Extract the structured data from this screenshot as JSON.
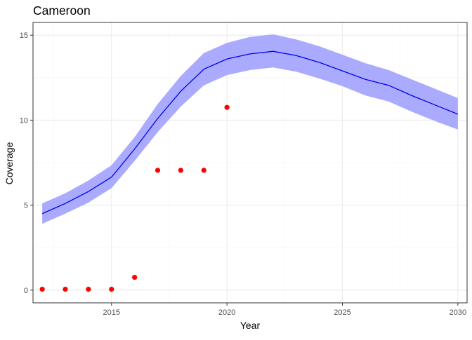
{
  "chart_data": {
    "type": "line",
    "title": "Cameroon",
    "xlabel": "Year",
    "ylabel": "Coverage",
    "xlim": [
      2011.6,
      2030.4
    ],
    "ylim": [
      -0.75,
      15.75
    ],
    "x_ticks": [
      2015,
      2020,
      2025,
      2030
    ],
    "y_ticks": [
      0,
      5,
      10,
      15
    ],
    "grid": true,
    "colors": {
      "line": "#0000ee",
      "band": "#aaaaff",
      "points": "#ff0000",
      "grid_major": "#ebebeb",
      "grid_minor": "#f5f5f5",
      "panel_border": "#333333",
      "text": "#000000",
      "tick_label": "#4d4d4d"
    },
    "series": [
      {
        "type": "line_with_band",
        "x": [
          2012,
          2013,
          2014,
          2015,
          2016,
          2017,
          2018,
          2019,
          2020,
          2021,
          2022,
          2023,
          2024,
          2025,
          2026,
          2027,
          2028,
          2029,
          2030
        ],
        "y": [
          4.5,
          5.1,
          5.8,
          6.65,
          8.3,
          10.1,
          11.7,
          13.0,
          13.6,
          13.9,
          14.05,
          13.8,
          13.4,
          12.9,
          12.4,
          12.05,
          11.45,
          10.9,
          10.35
        ],
        "lower": [
          3.9,
          4.5,
          5.15,
          6.0,
          7.6,
          9.3,
          10.8,
          12.05,
          12.65,
          12.95,
          13.1,
          12.85,
          12.45,
          12.0,
          11.45,
          11.1,
          10.5,
          9.95,
          9.45
        ],
        "upper": [
          5.1,
          5.7,
          6.45,
          7.35,
          9.0,
          10.95,
          12.6,
          13.95,
          14.55,
          14.9,
          15.05,
          14.75,
          14.35,
          13.85,
          13.35,
          12.95,
          12.4,
          11.85,
          11.3
        ]
      },
      {
        "type": "scatter",
        "x": [
          2012,
          2013,
          2014,
          2015,
          2016,
          2017,
          2018,
          2019,
          2020
        ],
        "y": [
          0.05,
          0.05,
          0.05,
          0.05,
          0.75,
          7.05,
          7.05,
          7.05,
          10.75
        ]
      }
    ]
  }
}
